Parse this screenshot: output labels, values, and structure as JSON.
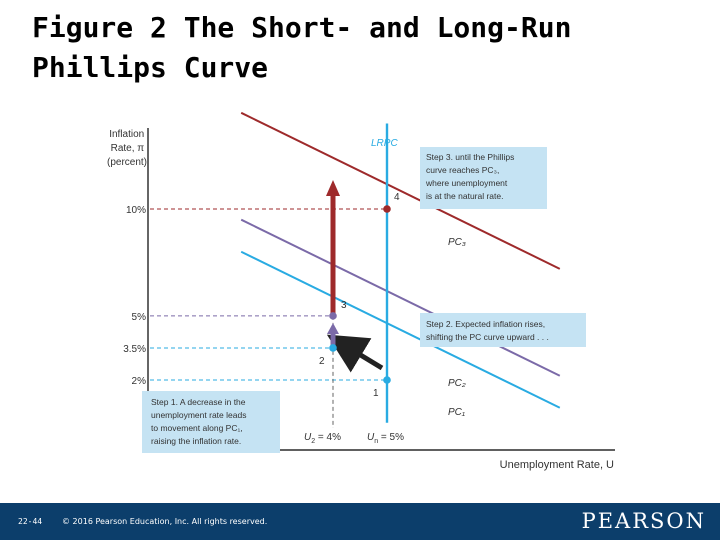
{
  "slide": {
    "title_line1": "Figure 2 The Short- and Long-Run",
    "title_line2": "Phillips Curve",
    "page_number": "22-44",
    "copyright": "© 2016 Pearson Education, Inc. All rights reserved.",
    "brand": "PEARSON"
  },
  "chart_data": {
    "type": "line",
    "ylabel": [
      "Inflation",
      "Rate, π",
      "(percent)"
    ],
    "xlabel": "Unemployment Rate, U",
    "y_ticks": [
      {
        "label": "10%",
        "value": 10
      },
      {
        "label": "5%",
        "value": 5
      },
      {
        "label": "3.5%",
        "value": 3.5
      },
      {
        "label": "2%",
        "value": 2
      }
    ],
    "x_ticks": [
      {
        "sym": "U",
        "sub": "2",
        "suffix": " = 4%",
        "value": 4
      },
      {
        "sym": "U",
        "sub": "n",
        "suffix": " = 5%",
        "value": 5
      }
    ],
    "series": [
      {
        "name": "PC₁",
        "color": "#29abe2",
        "points": [
          [
            2.3,
            8.0
          ],
          [
            8.2,
            0.7
          ]
        ]
      },
      {
        "name": "PC₂",
        "color": "#7b6aa8",
        "points": [
          [
            2.3,
            9.5
          ],
          [
            8.2,
            2.2
          ]
        ]
      },
      {
        "name": "PC₃",
        "color": "#9e2a2b",
        "points": [
          [
            2.3,
            14.5
          ],
          [
            8.2,
            7.2
          ]
        ]
      },
      {
        "name": "LRPC",
        "color": "#29abe2",
        "points": [
          [
            5,
            0.0
          ],
          [
            5,
            14.0
          ]
        ]
      }
    ],
    "points": [
      {
        "label": "1",
        "x": 5,
        "y": 2,
        "color": "#29abe2"
      },
      {
        "label": "2",
        "x": 4,
        "y": 3.5,
        "color": "#29abe2"
      },
      {
        "label": "3",
        "x": 4,
        "y": 5,
        "color": "#7b6aa8"
      },
      {
        "label": "4",
        "x": 5,
        "y": 10,
        "color": "#9e2a2b"
      }
    ],
    "annotations": [
      {
        "lines": [
          "Step 1. A decrease in the",
          "unemployment rate leads",
          "to movement along PC₁,",
          "raising the inflation rate."
        ]
      },
      {
        "lines": [
          "Step 2. Expected inflation rises,",
          "shifting the PC curve upward . . ."
        ]
      },
      {
        "lines": [
          "Step 3. until the Phillips",
          "curve reaches PC₃,",
          "where unemployment",
          "is at the natural rate."
        ]
      }
    ],
    "colors": {
      "arrow_step1": "#222222",
      "arrow_step2": "#7b6aa8",
      "arrow_step3": "#9e2a2b",
      "box_fill": "#c5e3f3"
    }
  }
}
